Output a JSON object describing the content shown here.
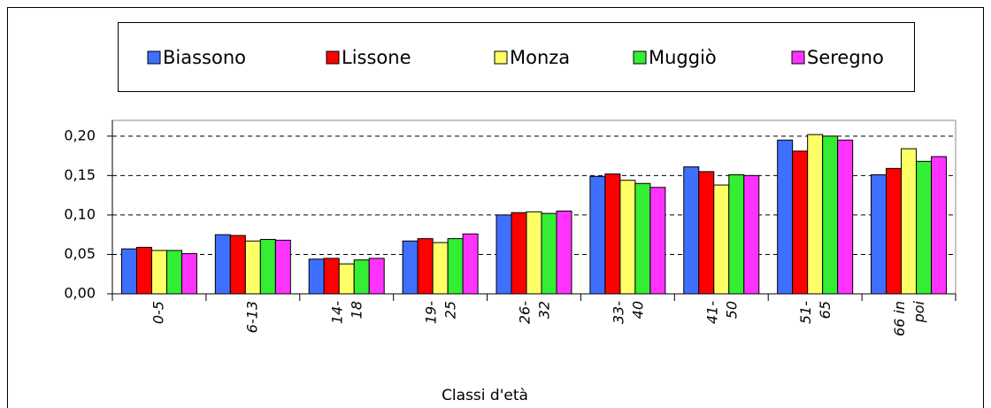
{
  "chart_data": {
    "type": "bar",
    "x_label": "Classi d'età",
    "categories": [
      "0-5",
      "6-13",
      "14- 18",
      "19- 25",
      "26- 32",
      "33- 40",
      "41- 50",
      "51- 65",
      "66 in poi"
    ],
    "series": [
      {
        "name": "Biassono",
        "color": "#3f6fff",
        "values": [
          0.057,
          0.075,
          0.044,
          0.067,
          0.1,
          0.149,
          0.161,
          0.195,
          0.151
        ]
      },
      {
        "name": "Lissone",
        "color": "#ff0000",
        "values": [
          0.059,
          0.074,
          0.045,
          0.07,
          0.103,
          0.152,
          0.155,
          0.181,
          0.159
        ]
      },
      {
        "name": "Monza",
        "color": "#ffff66",
        "values": [
          0.055,
          0.067,
          0.038,
          0.065,
          0.104,
          0.144,
          0.138,
          0.202,
          0.184
        ]
      },
      {
        "name": "Muggiò",
        "color": "#33ee33",
        "values": [
          0.055,
          0.069,
          0.043,
          0.07,
          0.102,
          0.14,
          0.151,
          0.2,
          0.168
        ]
      },
      {
        "name": "Seregno",
        "color": "#ff33ff",
        "values": [
          0.051,
          0.068,
          0.045,
          0.076,
          0.105,
          0.135,
          0.15,
          0.195,
          0.174
        ]
      }
    ],
    "ylim": [
      0,
      0.22
    ],
    "yticks": [
      {
        "value": 0,
        "label": "0,00"
      },
      {
        "value": 0.05,
        "label": "0,05"
      },
      {
        "value": 0.1,
        "label": "0,10"
      },
      {
        "value": 0.15,
        "label": "0,15"
      },
      {
        "value": 0.2,
        "label": "0,20"
      }
    ],
    "grid": true,
    "legend": "top"
  }
}
